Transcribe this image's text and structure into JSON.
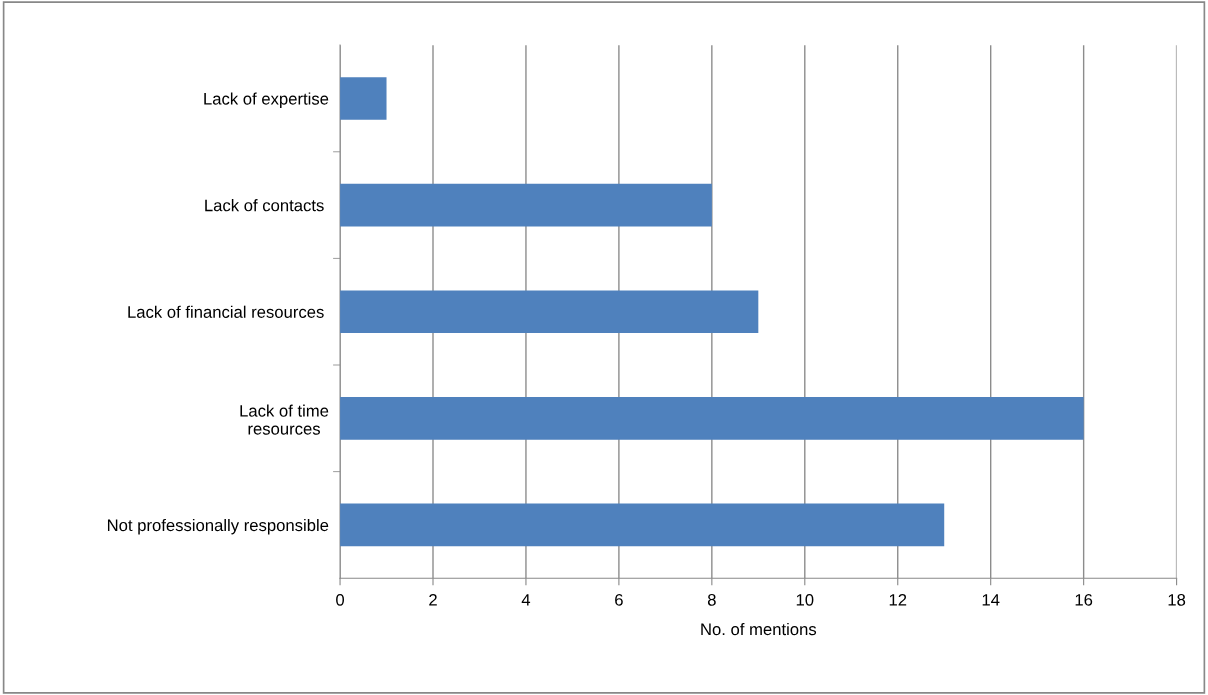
{
  "chart_data": {
    "type": "bar",
    "orientation": "horizontal",
    "xlabel": "No. of mentions",
    "categories": [
      "Lack of expertise",
      "Lack of contacts ",
      "Lack of financial resources ",
      "Lack of time\nresources",
      "Not professionally responsible"
    ],
    "values": [
      1,
      8,
      9,
      16,
      13
    ],
    "color": "#4f81bd",
    "xlim": [
      0,
      18
    ],
    "xticks": [
      0,
      2,
      4,
      6,
      8,
      10,
      12,
      14,
      16,
      18
    ],
    "grid": "x",
    "legend": false
  }
}
